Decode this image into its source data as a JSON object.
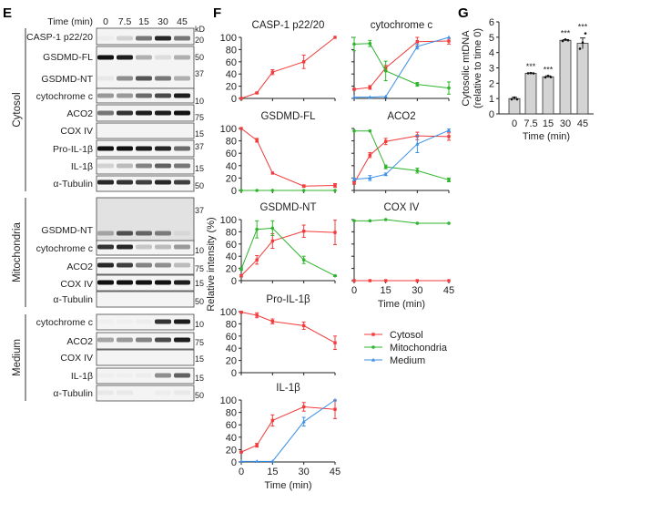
{
  "panel_e": {
    "letter": "E",
    "time_label": "Time (min)",
    "lanes": [
      "0",
      "7.5",
      "15",
      "30",
      "45"
    ],
    "kd_unit": "kD",
    "groups": [
      {
        "name": "Cytosol",
        "blots": [
          {
            "labels": [
              "CASP-1 p22/20"
            ],
            "kd": [
              "20"
            ],
            "bands": [
              [
                0.03,
                0.15,
                0.55,
                0.9,
                0.55
              ]
            ]
          },
          {
            "labels": [
              "GSDMD-FL",
              "GSDMD-NT"
            ],
            "kd": [
              "50",
              "37"
            ],
            "bands": [
              [
                1.0,
                0.95,
                0.3,
                0.1,
                0.3
              ],
              [
                0.05,
                0.45,
                0.7,
                0.55,
                0.3
              ]
            ]
          },
          {
            "labels": [
              "cytochrome c"
            ],
            "kd": [
              "10"
            ],
            "bands": [
              [
                0.4,
                0.4,
                0.6,
                0.75,
                0.95
              ]
            ]
          },
          {
            "labels": [
              "ACO2"
            ],
            "kd": [
              "75"
            ],
            "bands": [
              [
                0.55,
                0.85,
                0.95,
                0.95,
                1.0
              ]
            ]
          },
          {
            "labels": [
              "COX IV"
            ],
            "kd": [
              "15"
            ],
            "bands": [
              [
                0,
                0,
                0,
                0,
                0
              ]
            ]
          },
          {
            "labels": [
              "Pro-IL-1β"
            ],
            "kd": [
              "37"
            ],
            "bands": [
              [
                1.0,
                1.0,
                0.95,
                0.9,
                0.6
              ]
            ]
          },
          {
            "labels": [
              "IL-1β"
            ],
            "kd": [
              "15"
            ],
            "bands": [
              [
                0.15,
                0.25,
                0.5,
                0.65,
                0.55
              ]
            ]
          },
          {
            "labels": [
              "α-Tubulin"
            ],
            "kd": [
              "50"
            ],
            "bands": [
              [
                0.9,
                0.85,
                0.8,
                0.9,
                0.8
              ]
            ]
          }
        ]
      },
      {
        "name": "Mitochondria",
        "blots": [
          {
            "labels": [
              "GSDMD-NT"
            ],
            "kd": [
              "37"
            ],
            "bands": [
              [
                0.3,
                0.7,
                0.6,
                0.5,
                0.05
              ]
            ]
          },
          {
            "labels": [
              "cytochrome c"
            ],
            "kd": [
              "10"
            ],
            "bands": [
              [
                0.85,
                0.9,
                0.2,
                0.25,
                0.4
              ]
            ]
          },
          {
            "labels": [
              "ACO2"
            ],
            "kd": [
              "75"
            ],
            "bands": [
              [
                0.9,
                0.8,
                0.5,
                0.45,
                0.25
              ]
            ]
          },
          {
            "labels": [
              "COX IV"
            ],
            "kd": [
              "15"
            ],
            "bands": [
              [
                1.0,
                1.0,
                1.0,
                1.0,
                0.95
              ]
            ]
          },
          {
            "labels": [
              "α-Tubulin"
            ],
            "kd": [
              "50"
            ],
            "bands": [
              [
                0,
                0,
                0,
                0,
                0
              ]
            ]
          }
        ]
      },
      {
        "name": "Medium",
        "blots": [
          {
            "labels": [
              "cytochrome c"
            ],
            "kd": [
              "10"
            ],
            "bands": [
              [
                0.02,
                0.02,
                0.03,
                0.85,
                0.95
              ]
            ]
          },
          {
            "labels": [
              "ACO2"
            ],
            "kd": [
              "75"
            ],
            "bands": [
              [
                0.35,
                0.4,
                0.5,
                0.75,
                0.95
              ]
            ]
          },
          {
            "labels": [
              "COX IV"
            ],
            "kd": [
              "15"
            ],
            "bands": [
              [
                0,
                0,
                0,
                0,
                0
              ]
            ]
          },
          {
            "labels": [
              "IL-1β"
            ],
            "kd": [
              "15"
            ],
            "bands": [
              [
                0.02,
                0.02,
                0.03,
                0.45,
                0.65
              ]
            ]
          },
          {
            "labels": [
              "α-Tubulin"
            ],
            "kd": [
              "50"
            ],
            "bands": [
              [
                0.05,
                0.05,
                0,
                0.03,
                0.05
              ]
            ]
          }
        ]
      }
    ]
  },
  "panel_f": {
    "letter": "F",
    "ylabel": "Relative intensity (%)",
    "xlabel": "Time (min)",
    "legend": [
      "Cytosol",
      "Mitochondria",
      "Medium"
    ]
  },
  "panel_g": {
    "letter": "G"
  },
  "colors": {
    "cytosol": "#f23b3b",
    "mitochondria": "#2db52d",
    "medium": "#3b8fe6",
    "bar_fill": "#d4d4d4"
  },
  "chart_data": [
    {
      "type": "line",
      "title": "CASP-1 p22/20",
      "x": [
        0,
        7.5,
        15,
        30,
        45
      ],
      "xlim": [
        0,
        45
      ],
      "ylim": [
        0,
        100
      ],
      "xticks": [
        0,
        15,
        30,
        45
      ],
      "yticks": [
        0,
        20,
        40,
        60,
        80,
        100
      ],
      "series": [
        {
          "name": "Cytosol",
          "values": [
            0,
            9,
            43,
            60,
            100
          ],
          "err": [
            0,
            1,
            4,
            11,
            0
          ]
        }
      ]
    },
    {
      "type": "line",
      "title": "GSDMD-FL",
      "x": [
        0,
        7.5,
        15,
        30,
        45
      ],
      "xlim": [
        0,
        45
      ],
      "ylim": [
        0,
        100
      ],
      "xticks": [
        0,
        15,
        30,
        45
      ],
      "yticks": [
        0,
        20,
        40,
        60,
        80,
        100
      ],
      "series": [
        {
          "name": "Cytosol",
          "values": [
            100,
            81,
            28,
            7,
            8
          ],
          "err": [
            0,
            3,
            0,
            2,
            3
          ]
        },
        {
          "name": "Mitochondria",
          "values": [
            0,
            0,
            0,
            0,
            0
          ],
          "err": [
            0,
            0,
            0,
            0,
            0
          ]
        }
      ]
    },
    {
      "type": "line",
      "title": "GSDMD-NT",
      "x": [
        0,
        7.5,
        15,
        30,
        45
      ],
      "xlim": [
        0,
        45
      ],
      "ylim": [
        0,
        100
      ],
      "xticks": [
        0,
        15,
        30,
        45
      ],
      "yticks": [
        0,
        20,
        40,
        60,
        80,
        100
      ],
      "series": [
        {
          "name": "Cytosol",
          "values": [
            8,
            34,
            65,
            81,
            79
          ],
          "err": [
            2,
            7,
            12,
            10,
            20
          ]
        },
        {
          "name": "Mitochondria",
          "values": [
            19,
            84,
            86,
            34,
            8
          ],
          "err": [
            2,
            14,
            12,
            6,
            1
          ]
        }
      ]
    },
    {
      "type": "line",
      "title": "Pro-IL-1β",
      "x": [
        0,
        7.5,
        15,
        30,
        45
      ],
      "xlim": [
        0,
        45
      ],
      "ylim": [
        0,
        100
      ],
      "xticks": [
        0,
        15,
        30,
        45
      ],
      "yticks": [
        0,
        20,
        40,
        60,
        80,
        100
      ],
      "series": [
        {
          "name": "Cytosol",
          "values": [
            99,
            94,
            84,
            77,
            49
          ],
          "err": [
            1,
            4,
            4,
            6,
            11
          ]
        }
      ]
    },
    {
      "type": "line",
      "title": "IL-1β",
      "xlabel": "Time (min)",
      "x": [
        0,
        7.5,
        15,
        30,
        45
      ],
      "xlim": [
        0,
        45
      ],
      "ylim": [
        0,
        100
      ],
      "xticks": [
        0,
        15,
        30,
        45
      ],
      "yticks": [
        0,
        20,
        40,
        60,
        80,
        100
      ],
      "series": [
        {
          "name": "Cytosol",
          "values": [
            16,
            27,
            67,
            89,
            85
          ],
          "err": [
            1,
            3,
            9,
            7,
            15
          ]
        },
        {
          "name": "Medium",
          "values": [
            1,
            1,
            1,
            65,
            100
          ],
          "err": [
            0,
            0,
            0,
            7,
            0
          ]
        }
      ]
    },
    {
      "type": "line",
      "title": "cytochrome c",
      "x": [
        0,
        7.5,
        15,
        30,
        45
      ],
      "xlim": [
        0,
        45
      ],
      "ylim": [
        0,
        100
      ],
      "xticks": [
        0,
        15,
        30,
        45
      ],
      "yticks": [
        0,
        20,
        40,
        60,
        80,
        100
      ],
      "series": [
        {
          "name": "Cytosol",
          "values": [
            15,
            18,
            50,
            93,
            94
          ],
          "err": [
            1,
            3,
            4,
            7,
            5
          ]
        },
        {
          "name": "Mitochondria",
          "values": [
            89,
            90,
            45,
            23,
            17
          ],
          "err": [
            11,
            5,
            16,
            3,
            10
          ]
        },
        {
          "name": "Medium",
          "values": [
            2,
            2,
            3,
            85,
            100
          ],
          "err": [
            0,
            0,
            0,
            4,
            0
          ]
        }
      ]
    },
    {
      "type": "line",
      "title": "ACO2",
      "x": [
        0,
        7.5,
        15,
        30,
        45
      ],
      "xlim": [
        0,
        45
      ],
      "ylim": [
        0,
        100
      ],
      "xticks": [
        0,
        15,
        30,
        45
      ],
      "yticks": [
        0,
        20,
        40,
        60,
        80,
        100
      ],
      "series": [
        {
          "name": "Cytosol",
          "values": [
            12,
            57,
            79,
            88,
            87
          ],
          "err": [
            2,
            4,
            5,
            6,
            6
          ]
        },
        {
          "name": "Mitochondria",
          "values": [
            96,
            96,
            38,
            32,
            17
          ],
          "err": [
            0,
            0,
            3,
            4,
            3
          ]
        },
        {
          "name": "Medium",
          "values": [
            18,
            20,
            26,
            75,
            97
          ],
          "err": [
            2,
            4,
            2,
            14,
            2
          ]
        }
      ]
    },
    {
      "type": "line",
      "title": "COX IV",
      "xlabel": "Time (min)",
      "x": [
        0,
        7.5,
        15,
        30,
        45
      ],
      "xlim": [
        0,
        45
      ],
      "ylim": [
        0,
        100
      ],
      "xticks": [
        0,
        15,
        30,
        45
      ],
      "yticks": [
        0,
        20,
        40,
        60,
        80,
        100
      ],
      "series": [
        {
          "name": "Cytosol",
          "values": [
            0,
            0,
            0,
            0,
            0
          ],
          "err": [
            0,
            0,
            0,
            0,
            0
          ]
        },
        {
          "name": "Mitochondria",
          "values": [
            98,
            98,
            100,
            94,
            94
          ],
          "err": [
            0,
            0,
            0,
            0,
            0
          ]
        }
      ]
    },
    {
      "type": "bar",
      "title": "",
      "xlabel": "Time (min)",
      "ylabel": [
        "Cytosolic mtDNA",
        "(relative to time 0)"
      ],
      "categories": [
        "0",
        "7.5",
        "15",
        "30",
        "45"
      ],
      "values": [
        1.0,
        2.65,
        2.42,
        4.8,
        4.6
      ],
      "err": [
        0.08,
        0.02,
        0.06,
        0.04,
        0.35
      ],
      "points": [
        [
          0.95,
          1.07,
          0.95
        ],
        [
          2.65,
          2.66,
          2.64
        ],
        [
          2.38,
          2.48,
          2.4
        ],
        [
          4.75,
          4.85,
          4.8
        ],
        [
          4.25,
          4.65,
          5.25
        ]
      ],
      "significance": [
        "",
        "***",
        "***",
        "***",
        "***"
      ],
      "ylim": [
        0,
        6
      ],
      "yticks": [
        0,
        1,
        2,
        3,
        4,
        5,
        6
      ]
    }
  ]
}
